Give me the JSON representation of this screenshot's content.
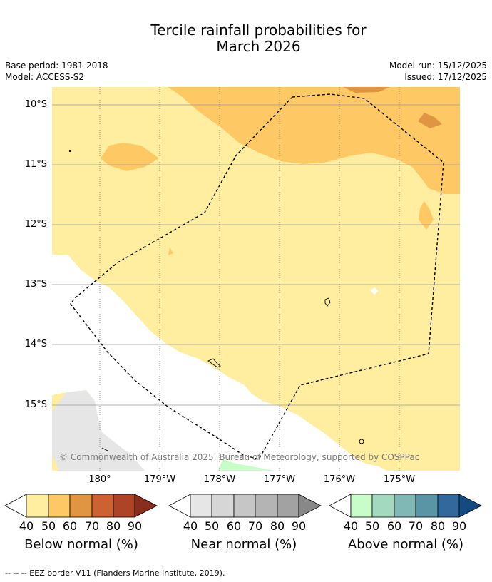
{
  "title_line1": "Tercile rainfall probabilities for",
  "title_line2": "March 2026",
  "base_period": "Base period: 1981-2018",
  "model": "Model: ACCESS-S2",
  "model_run": "Model run: 15/12/2025",
  "issued": "Issued: 17/12/2025",
  "lat_labels": [
    "10°S",
    "11°S",
    "12°S",
    "13°S",
    "14°S",
    "15°S"
  ],
  "lon_labels": [
    "180°",
    "179°W",
    "178°W",
    "177°W",
    "176°W",
    "175°W"
  ],
  "copyright": "© Commonwealth of Australia 2025, Bureau of Meteorology, supported by COSPPac",
  "colorbars": [
    {
      "name": "below",
      "label": "Below normal (%)",
      "ticks": [
        "40",
        "50",
        "60",
        "70",
        "80",
        "90"
      ],
      "colors": [
        "#ffeda0",
        "#fec965",
        "#e09542",
        "#cc6232",
        "#ad4426",
        "#8a2d1c"
      ]
    },
    {
      "name": "near",
      "label": "Near normal (%)",
      "ticks": [
        "40",
        "50",
        "60",
        "70",
        "80",
        "90"
      ],
      "colors": [
        "#e6e6e6",
        "#d6d6d6",
        "#c6c6c6",
        "#b4b4b4",
        "#a2a2a2",
        "#888888"
      ]
    },
    {
      "name": "above",
      "label": "Above normal (%)",
      "ticks": [
        "40",
        "50",
        "60",
        "70",
        "80",
        "90"
      ],
      "colors": [
        "#c8fcc9",
        "#a3d9bf",
        "#7fb8b4",
        "#5a95a6",
        "#32689c",
        "#134b80"
      ]
    }
  ],
  "footnote": "--  --  -- EEZ border V11 (Flanders Marine Institute, 2019)."
}
